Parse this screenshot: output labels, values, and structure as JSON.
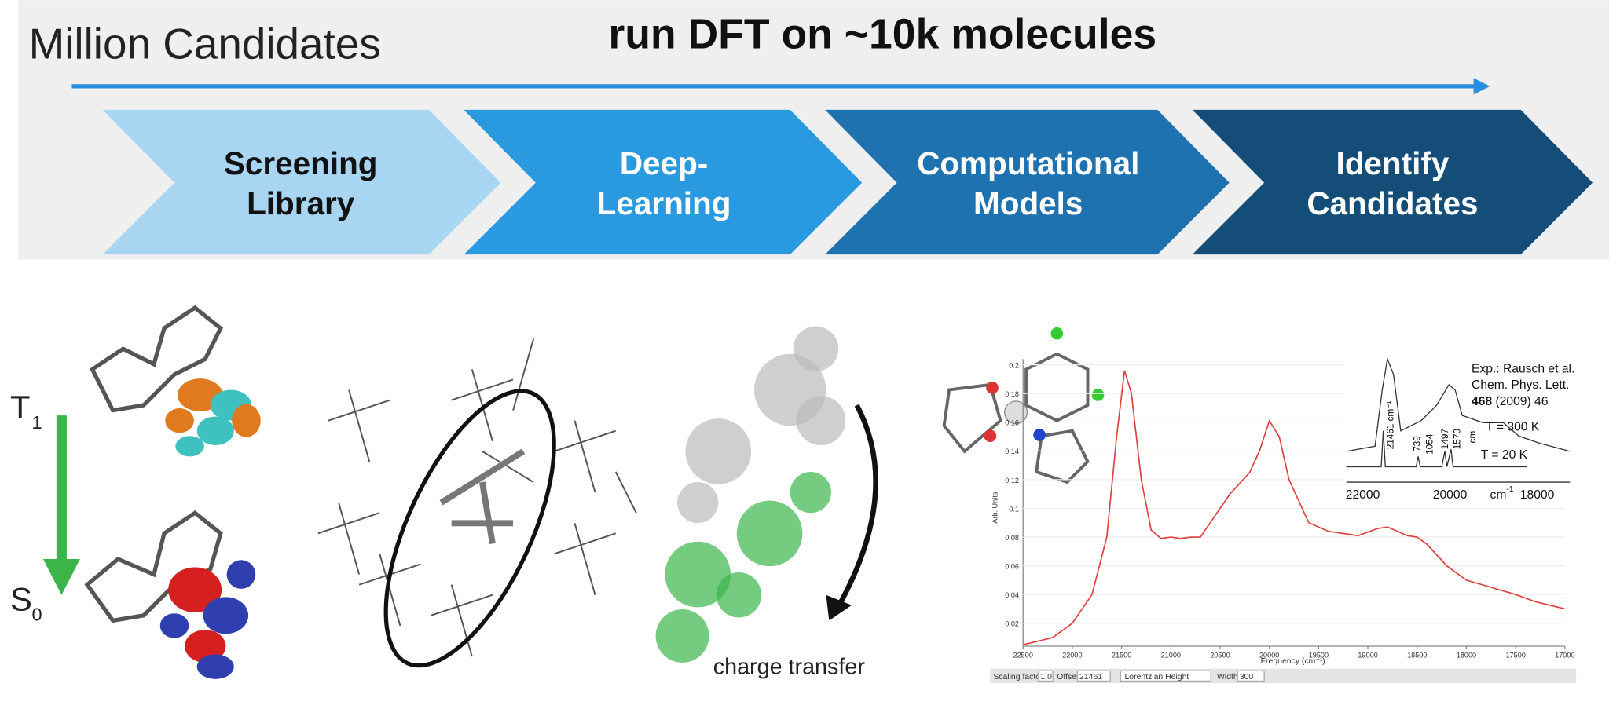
{
  "header": {
    "left_title": "Million Candidates",
    "center_title": "run DFT on ~10k molecules"
  },
  "pipeline": [
    {
      "line1": "Screening",
      "line2": "Library"
    },
    {
      "line1": "Deep-",
      "line2": "Learning"
    },
    {
      "line1": "Computational",
      "line2": "Models"
    },
    {
      "line1": "Identify",
      "line2": "Candidates"
    }
  ],
  "figures": {
    "t1": {
      "letter": "T",
      "sub": "1"
    },
    "s0": {
      "letter": "S",
      "sub": "0"
    },
    "charge_transfer": "charge transfer"
  },
  "spectrum": {
    "type": "line",
    "y_label": "Arb. Units",
    "x_label": "Frequency (cm⁻¹)",
    "color": "#e04040",
    "x": [
      22500,
      22200,
      22000,
      21800,
      21650,
      21550,
      21470,
      21400,
      21300,
      21200,
      21100,
      21000,
      20900,
      20800,
      20700,
      20600,
      20400,
      20200,
      20100,
      20000,
      19900,
      19800,
      19600,
      19400,
      19200,
      19100,
      18900,
      18800,
      18600,
      18500,
      18400,
      18200,
      18000,
      17800,
      17500,
      17300,
      17000
    ],
    "values": [
      0.005,
      0.01,
      0.02,
      0.04,
      0.08,
      0.15,
      0.196,
      0.18,
      0.12,
      0.085,
      0.079,
      0.08,
      0.079,
      0.08,
      0.08,
      0.09,
      0.11,
      0.125,
      0.14,
      0.161,
      0.15,
      0.12,
      0.09,
      0.084,
      0.082,
      0.081,
      0.086,
      0.087,
      0.081,
      0.08,
      0.075,
      0.06,
      0.05,
      0.046,
      0.04,
      0.035,
      0.03
    ],
    "xlim": [
      22500,
      17000
    ],
    "ylim": [
      0.004,
      0.204
    ],
    "xticks": [
      22500,
      22000,
      21500,
      21000,
      20500,
      20000,
      19500,
      19000,
      18500,
      18000,
      17500,
      17000
    ],
    "yticks": [
      0.02,
      0.04,
      0.06,
      0.08,
      0.1,
      0.12,
      0.14,
      0.16,
      0.18,
      0.2
    ]
  },
  "inset": {
    "ref1": "Exp.: Rausch et al.",
    "ref2": "Chem. Phys. Lett.",
    "ref_volume": "468",
    "ref_rest": "(2009) 46",
    "t300": "T = 300 K",
    "t20": "T = 20 K",
    "peak": "21461 cm⁻¹",
    "lines": [
      "739",
      "1054",
      "1497",
      "1570"
    ],
    "lines_unit": "cm",
    "ticks": [
      "22000",
      "20000",
      "18000"
    ],
    "unit": "cm",
    "unit_sup": "-1"
  },
  "toolbar": {
    "scaling_label": "Scaling factor:",
    "scaling": "1.0",
    "offset_label": "Offset:",
    "offset": "21461",
    "mode": "Lorentzian Height",
    "width_label": "Width:",
    "width": "300"
  }
}
